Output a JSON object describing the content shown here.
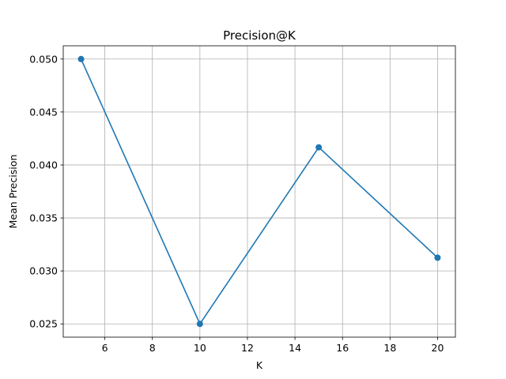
{
  "chart_data": {
    "type": "line",
    "title": "Precision@K",
    "xlabel": "K",
    "ylabel": "Mean Precision",
    "x": [
      5,
      10,
      15,
      20
    ],
    "series": [
      {
        "values": [
          0.05,
          0.025,
          0.041667,
          0.03125
        ],
        "color": "#1f77b4",
        "marker": "circle"
      }
    ],
    "xlim": [
      4.25,
      20.75
    ],
    "ylim": [
      0.02375,
      0.05125
    ],
    "xticks": [
      6,
      8,
      10,
      12,
      14,
      16,
      18,
      20
    ],
    "xtick_labels": [
      "6",
      "8",
      "10",
      "12",
      "14",
      "16",
      "18",
      "20"
    ],
    "yticks": [
      0.025,
      0.03,
      0.035,
      0.04,
      0.045,
      0.05
    ],
    "ytick_labels": [
      "0.025",
      "0.030",
      "0.035",
      "0.040",
      "0.045",
      "0.050"
    ],
    "grid": true
  }
}
